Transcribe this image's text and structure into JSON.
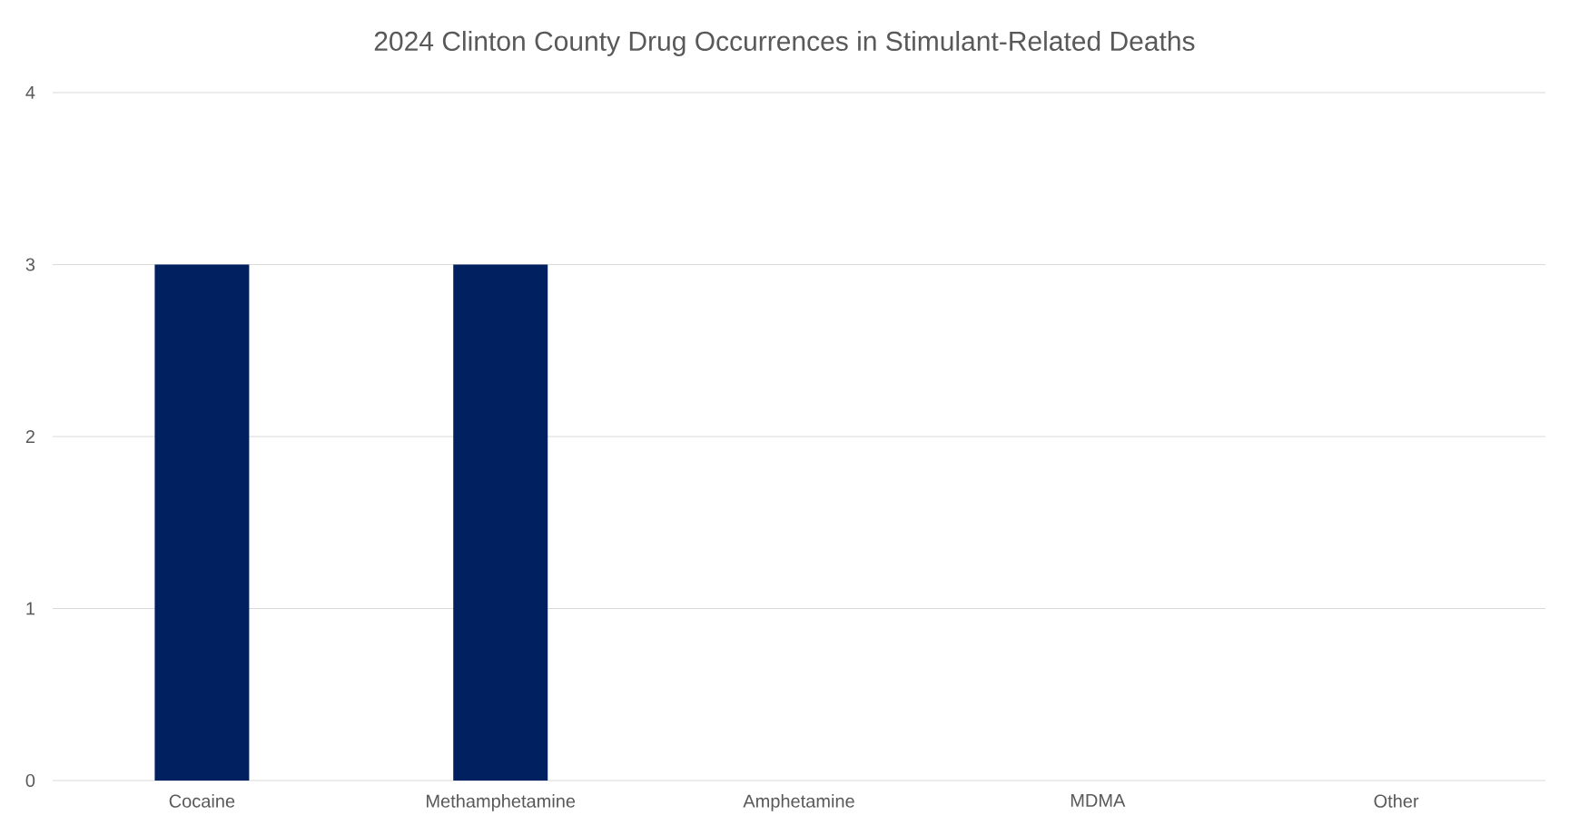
{
  "chart_data": {
    "type": "bar",
    "title": "2024 Clinton County Drug Occurrences in Stimulant-Related Deaths",
    "categories": [
      "Cocaine",
      "Methamphetamine",
      "Amphetamine",
      "MDMA",
      "Other"
    ],
    "values": [
      3,
      3,
      0,
      0,
      0
    ],
    "color": "#002060",
    "ylim": [
      0,
      4
    ],
    "yticks": [
      0,
      1,
      2,
      3,
      4
    ],
    "grid": "y"
  }
}
